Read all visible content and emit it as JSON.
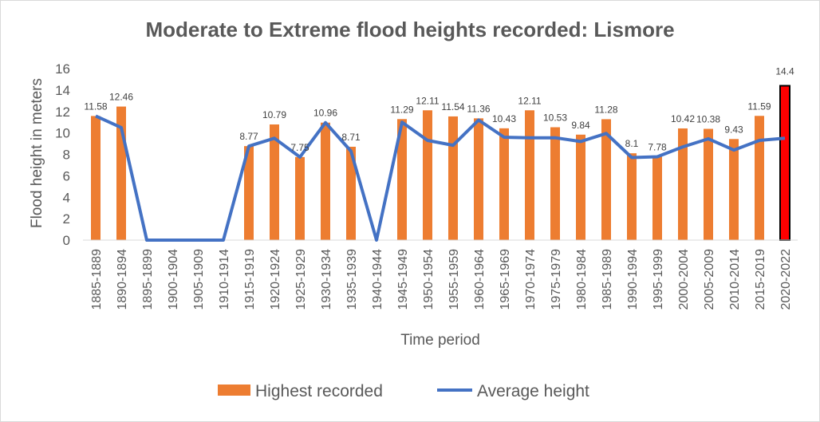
{
  "chart_data": {
    "type": "bar",
    "title": "Moderate to Extreme flood heights recorded: Lismore",
    "xlabel": "Time period",
    "ylabel": "Flood height in meters",
    "ylim": [
      0,
      16
    ],
    "yticks": [
      "0",
      "2",
      "4",
      "6",
      "8",
      "10",
      "12",
      "14",
      "16"
    ],
    "categories": [
      "1885-1889",
      "1890-1894",
      "1895-1899",
      "1900-1904",
      "1905-1909",
      "1910-1914",
      "1915-1919",
      "1920-1924",
      "1925-1929",
      "1930-1934",
      "1935-1939",
      "1940-1944",
      "1945-1949",
      "1950-1954",
      "1955-1959",
      "1960-1964",
      "1965-1969",
      "1970-1974",
      "1975-1979",
      "1980-1984",
      "1985-1989",
      "1990-1994",
      "1995-1999",
      "2000-2004",
      "2005-2009",
      "2010-2014",
      "2015-2019",
      "2020-2022"
    ],
    "series": [
      {
        "name": "Highest recorded",
        "kind": "bar",
        "color": "#ED7D31",
        "values": [
          11.58,
          12.46,
          null,
          null,
          null,
          null,
          8.77,
          10.79,
          7.75,
          10.96,
          8.71,
          null,
          11.29,
          12.11,
          11.54,
          11.36,
          10.43,
          12.11,
          10.53,
          9.84,
          11.28,
          8.1,
          7.78,
          10.42,
          10.38,
          9.43,
          11.59,
          14.4
        ],
        "labels": [
          "11.58",
          "12.46",
          "",
          "",
          "",
          "",
          "8.77",
          "10.79",
          "7.75",
          "10.96",
          "8.71",
          "",
          "11.29",
          "12.11",
          "11.54",
          "11.36",
          "10.43",
          "12.11",
          "10.53",
          "9.84",
          "11.28",
          "8.1",
          "7.78",
          "10.42",
          "10.38",
          "9.43",
          "11.59",
          "14.4"
        ]
      },
      {
        "name": "Average height",
        "kind": "line",
        "color": "#4472C4",
        "values": [
          11.58,
          10.5,
          0,
          0,
          0,
          0,
          8.77,
          9.5,
          7.75,
          10.96,
          8.3,
          0,
          11.0,
          9.3,
          8.85,
          11.2,
          9.6,
          9.55,
          9.55,
          9.2,
          9.95,
          7.7,
          7.78,
          8.7,
          9.45,
          8.4,
          9.3,
          9.5
        ]
      }
    ],
    "highlight": {
      "index": 27,
      "color": "#FF0000",
      "stroke": "#000000"
    },
    "legend": {
      "position": "bottom"
    }
  }
}
